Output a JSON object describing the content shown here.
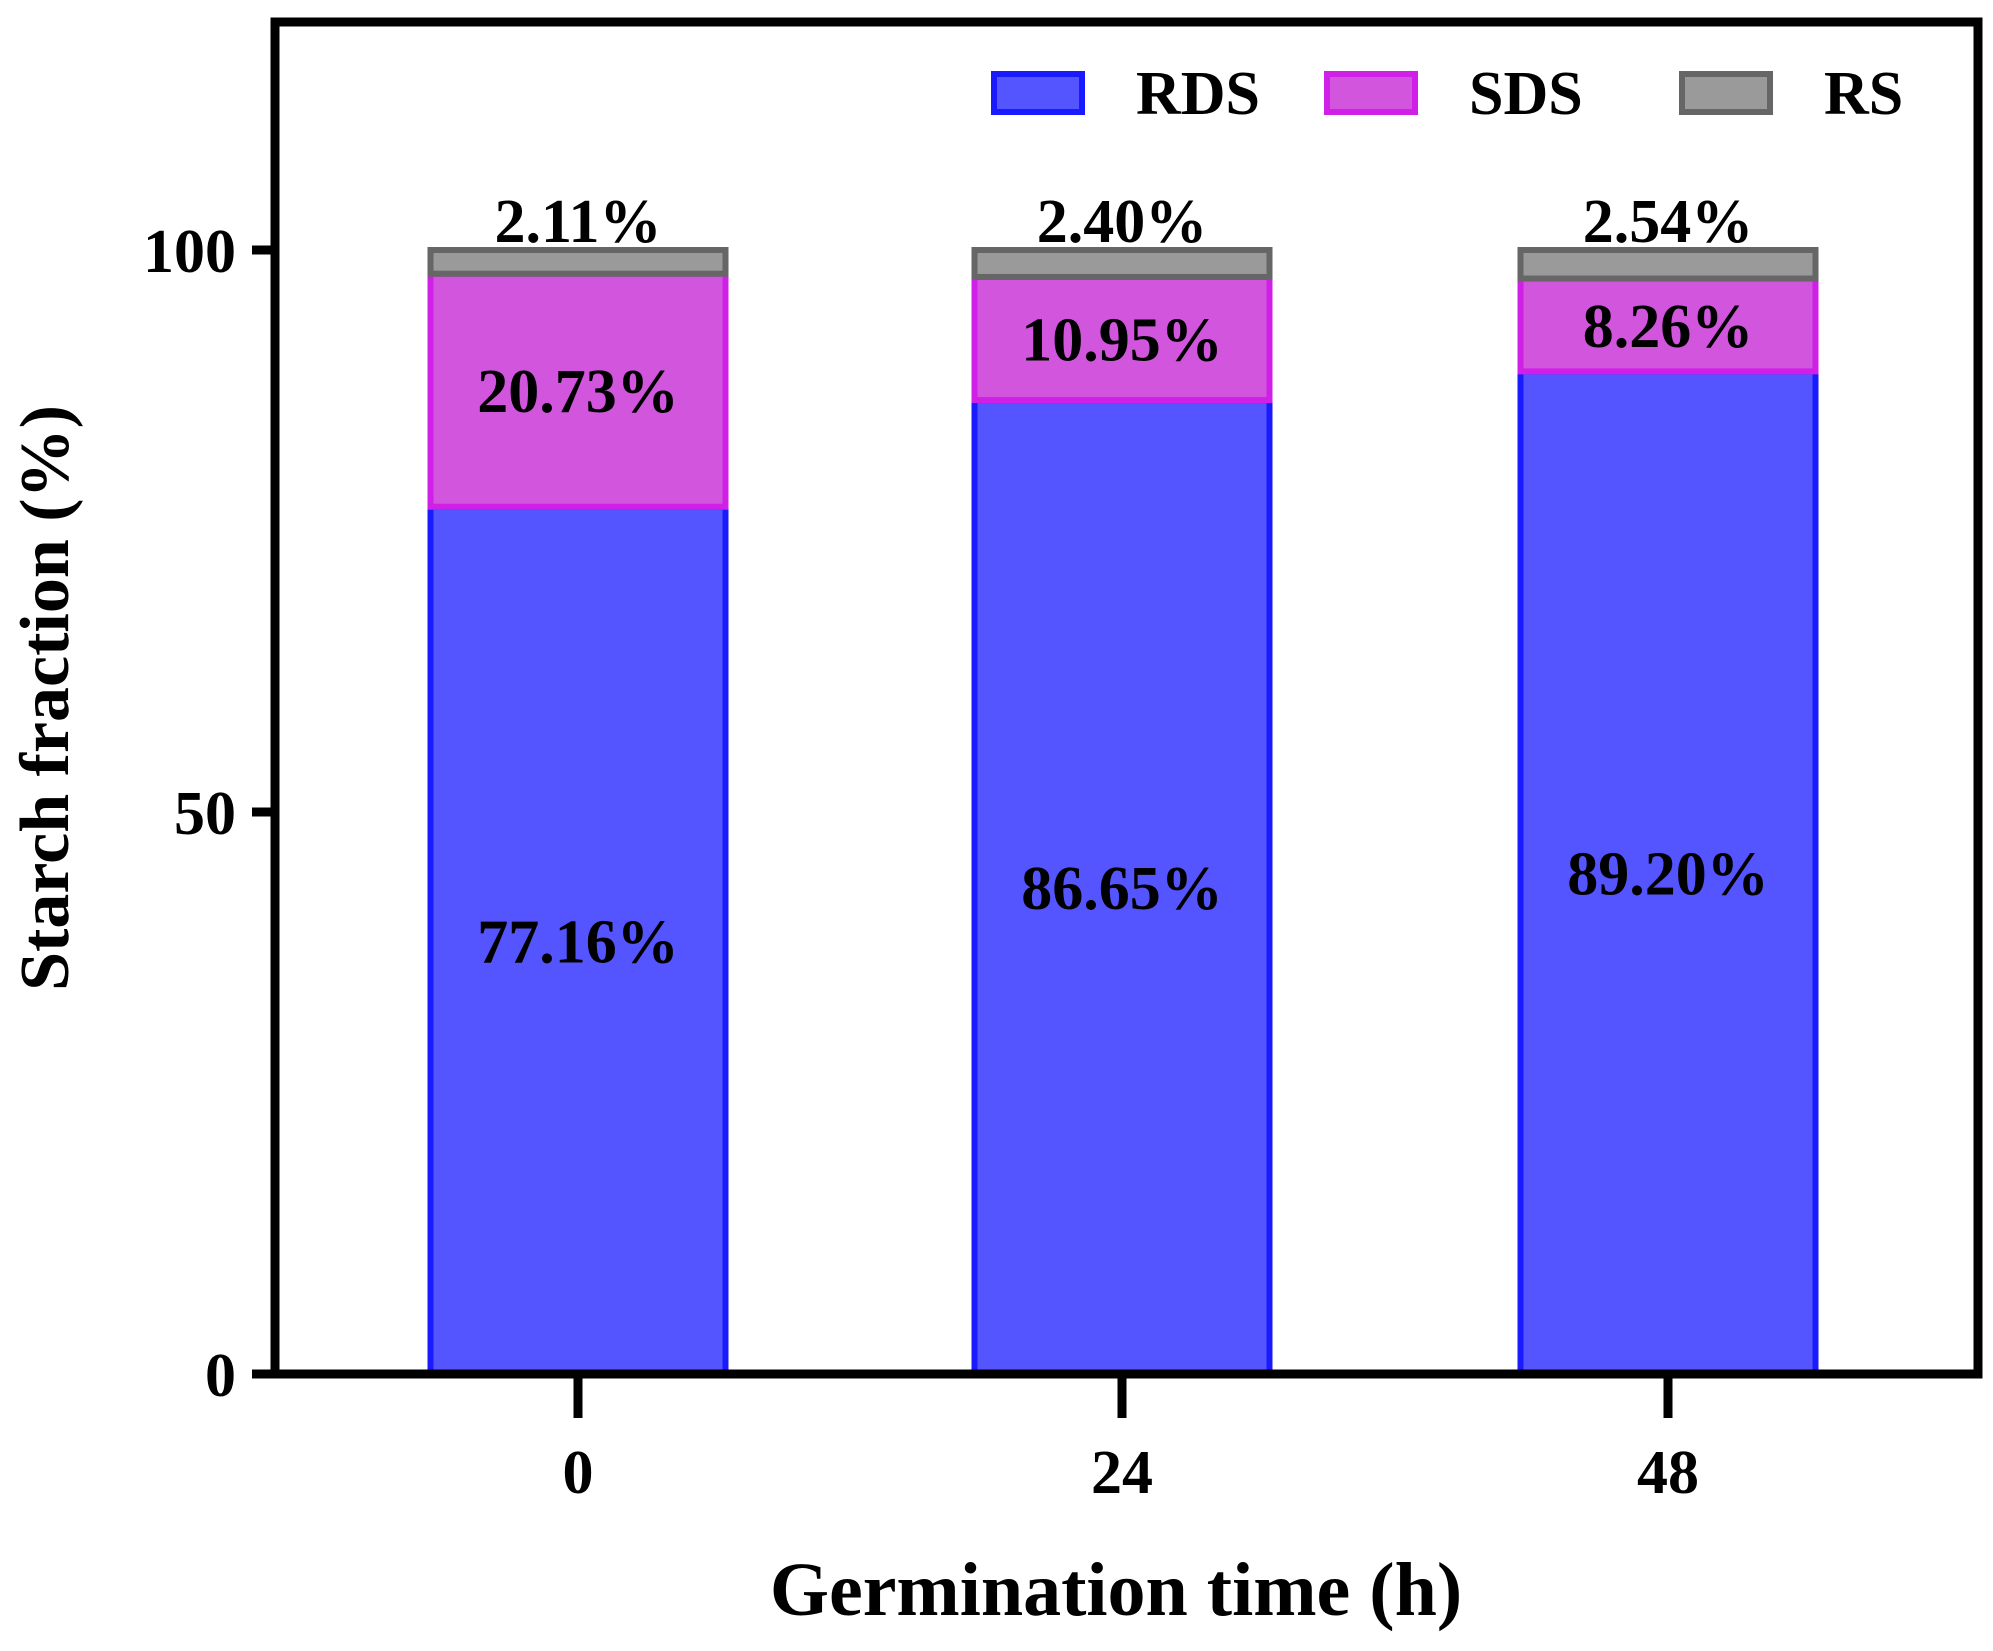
{
  "chart_data": {
    "type": "stacked-bar",
    "xlabel": "Germination time (h)",
    "ylabel": "Starch fraction (%)",
    "ylim": [
      0,
      120
    ],
    "yticks": [
      0,
      50,
      100
    ],
    "categories": [
      "0",
      "24",
      "48"
    ],
    "series": [
      {
        "name": "RDS",
        "values": [
          77.16,
          86.65,
          89.2
        ],
        "labels": [
          "77.16%",
          "86.65%",
          "89.20%"
        ],
        "fill": "#5555ff",
        "stroke": "#1a1aff"
      },
      {
        "name": "SDS",
        "values": [
          20.73,
          10.95,
          8.26
        ],
        "labels": [
          "20.73%",
          "10.95%",
          "8.26%"
        ],
        "fill": "#d155dd",
        "stroke": "#d020e8"
      },
      {
        "name": "RS",
        "values": [
          2.11,
          2.4,
          2.54
        ],
        "labels": [
          "2.11%",
          "2.40%",
          "2.54%"
        ],
        "fill": "#9a9a9a",
        "stroke": "#666666"
      }
    ],
    "legend_position": "top-right"
  }
}
